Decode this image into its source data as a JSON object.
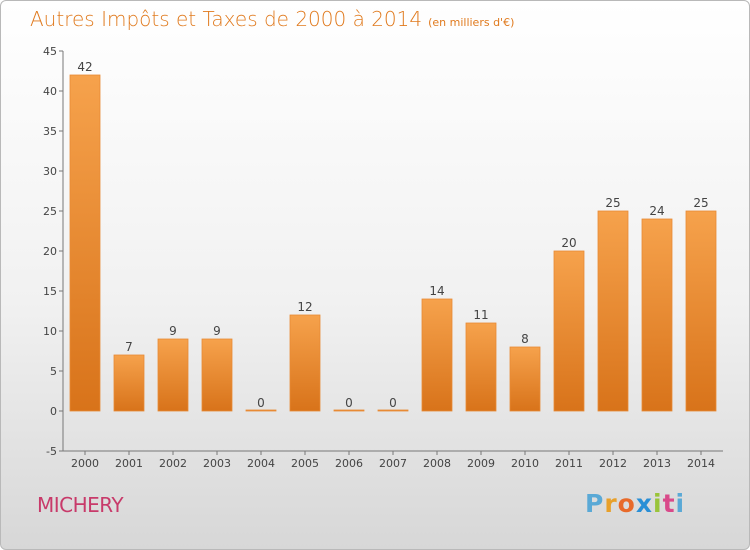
{
  "header": {
    "title": "Autres Impôts et Taxes de 2000 à 2014",
    "unit": "(en milliers d'€)"
  },
  "commune": "MICHERY",
  "brand": {
    "letters": [
      "P",
      "r",
      "o",
      "x",
      "i",
      "t",
      "i"
    ],
    "colors": [
      "#5aa9d6",
      "#e8a02a",
      "#e86a2a",
      "#2a8fd6",
      "#9ac43a",
      "#d94a8a",
      "#5aa9d6"
    ]
  },
  "chart_data": {
    "type": "bar",
    "categories": [
      "2000",
      "2001",
      "2002",
      "2003",
      "2004",
      "2005",
      "2006",
      "2007",
      "2008",
      "2009",
      "2010",
      "2011",
      "2012",
      "2013",
      "2014"
    ],
    "values": [
      42,
      7,
      9,
      9,
      0,
      12,
      0,
      0,
      14,
      11,
      8,
      20,
      25,
      24,
      25
    ],
    "ylim": [
      -5,
      45
    ],
    "yticks": [
      -5,
      0,
      5,
      10,
      15,
      20,
      25,
      30,
      35,
      40,
      45
    ],
    "grid": false,
    "bar_color_light": "#f6a24c",
    "bar_color_dark": "#d8731a"
  }
}
